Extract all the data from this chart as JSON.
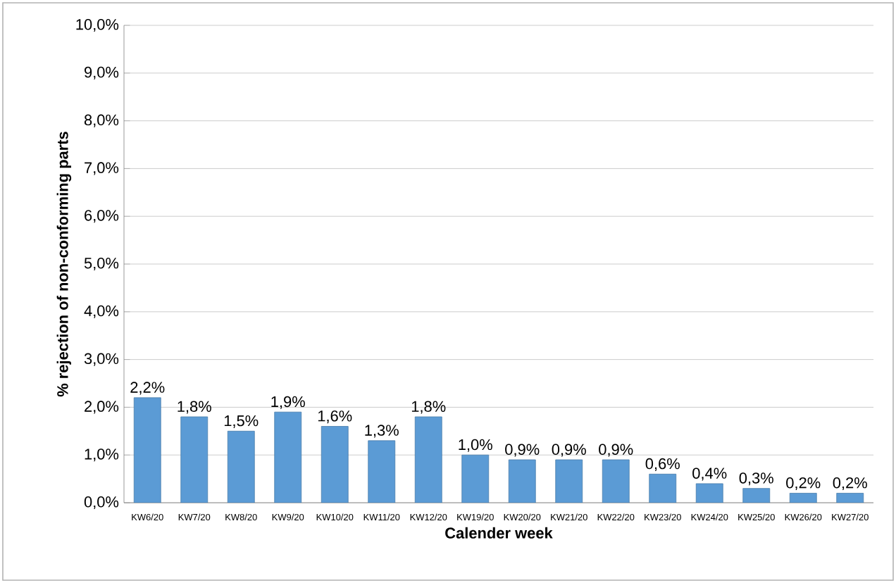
{
  "chart_data": {
    "type": "bar",
    "xlabel": "Calender week",
    "ylabel": "% rejection of non-conforming parts",
    "categories": [
      "KW6/20",
      "KW7/20",
      "KW8/20",
      "KW9/20",
      "KW10/20",
      "KW11/20",
      "KW12/20",
      "KW19/20",
      "KW20/20",
      "KW21/20",
      "KW22/20",
      "KW23/20",
      "KW24/20",
      "KW25/20",
      "KW26/20",
      "KW27/20"
    ],
    "values": [
      2.2,
      1.8,
      1.5,
      1.9,
      1.6,
      1.3,
      1.8,
      1.0,
      0.9,
      0.9,
      0.9,
      0.6,
      0.4,
      0.3,
      0.2,
      0.2
    ],
    "value_labels": [
      "2,2%",
      "1,8%",
      "1,5%",
      "1,9%",
      "1,6%",
      "1,3%",
      "1,8%",
      "1,0%",
      "0,9%",
      "0,9%",
      "0,9%",
      "0,6%",
      "0,4%",
      "0,3%",
      "0,2%",
      "0,2%"
    ],
    "color": "#5b9bd5",
    "ylim": [
      0,
      10
    ],
    "grid": "y",
    "yticks": [
      {
        "value": 0,
        "label": "0,0%"
      },
      {
        "value": 1,
        "label": "1,0%"
      },
      {
        "value": 2,
        "label": "2,0%"
      },
      {
        "value": 3,
        "label": "3,0%"
      },
      {
        "value": 4,
        "label": "4,0%"
      },
      {
        "value": 5,
        "label": "5,0%"
      },
      {
        "value": 6,
        "label": "6,0%"
      },
      {
        "value": 7,
        "label": "7,0%"
      },
      {
        "value": 8,
        "label": "8,0%"
      },
      {
        "value": 9,
        "label": "9,0%"
      },
      {
        "value": 10,
        "label": "10,0%"
      }
    ]
  }
}
